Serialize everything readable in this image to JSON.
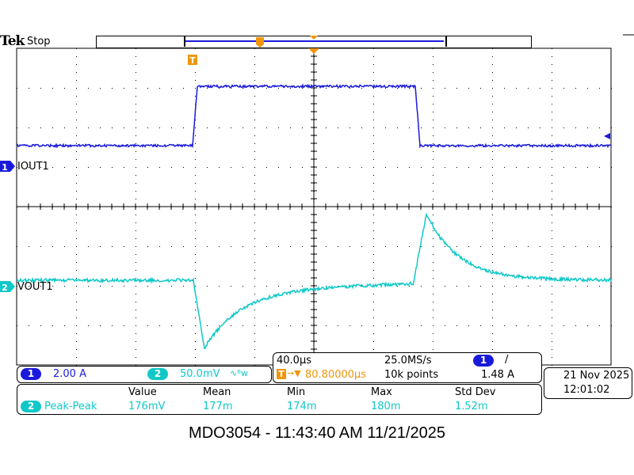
{
  "brand": "Tek",
  "status": "Stop",
  "channels": [
    {
      "num": "1",
      "label": "IOUT1",
      "scale": "2.00 A",
      "color": "#1a1adc"
    },
    {
      "num": "2",
      "label": "VOUT1",
      "scale": "50.0mV",
      "bw_icon": "bandwidth-limit-icon",
      "bw_text": "∿ᴮw",
      "color": "#10c8c8"
    }
  ],
  "timebase": {
    "horizontal": "40.0µs",
    "trigger_pos": "80.80000µs",
    "sample_rate": "25.0MS/s",
    "record": "10k points",
    "trig_source": "1",
    "trig_slope": "/",
    "trig_level": "1.48 A",
    "trigger_color": "#f0960a"
  },
  "datetime": {
    "date": "21 Nov 2025",
    "time": "12:01:02"
  },
  "measurements": {
    "headers": [
      "Value",
      "Mean",
      "Min",
      "Max",
      "Std Dev"
    ],
    "rows": [
      {
        "channel": "2",
        "name": "Peak-Peak",
        "values": [
          "176mV",
          "177m",
          "174m",
          "180m",
          "1.52m"
        ]
      }
    ]
  },
  "footer": "MDO3054 - 11:43:40 AM    11/21/2025"
}
